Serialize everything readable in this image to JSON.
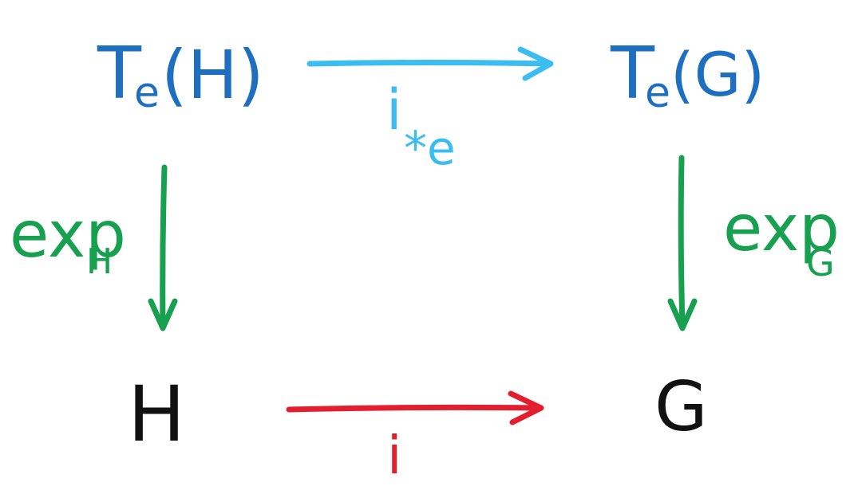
{
  "diagram": {
    "top_left": {
      "main": "T",
      "sub": "e",
      "arg": "(H)"
    },
    "top_right": {
      "main": "T",
      "sub": "e",
      "arg": "(G)"
    },
    "bottom_left": "H",
    "bottom_right": "G",
    "top_arrow": {
      "main": "i",
      "sub": "*e"
    },
    "bottom_arrow": {
      "main": "i"
    },
    "left_arrow": {
      "main": "exp",
      "sub": "H"
    },
    "right_arrow": {
      "main": "exp",
      "sub": "G"
    }
  },
  "colors": {
    "lie_algebra": "#1f6fc0",
    "pushforward": "#3bbdf2",
    "exponential": "#16a050",
    "inclusion": "#e31e2e",
    "group": "#111111"
  }
}
